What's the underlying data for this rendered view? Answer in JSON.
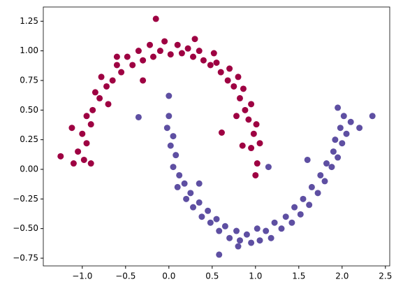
{
  "chart_data": {
    "type": "scatter",
    "xlim": [
      -1.45,
      2.55
    ],
    "ylim": [
      -0.815,
      1.37
    ],
    "xticks": [
      {
        "value": -1.0,
        "label": "−1.0"
      },
      {
        "value": -0.5,
        "label": "−0.5"
      },
      {
        "value": 0.0,
        "label": "0.0"
      },
      {
        "value": 0.5,
        "label": "0.5"
      },
      {
        "value": 1.0,
        "label": "1.0"
      },
      {
        "value": 1.5,
        "label": "1.5"
      },
      {
        "value": 2.0,
        "label": "2.0"
      },
      {
        "value": 2.5,
        "label": "2.5"
      }
    ],
    "yticks": [
      1.25,
      {
        "value": 1.0,
        "label": "1.00"
      },
      0.75,
      {
        "value": 0.5,
        "label": "0.50"
      },
      0.25,
      {
        "value": 0.0,
        "label": "0.00"
      },
      {
        "value": -0.25,
        "label": "−0.25"
      },
      {
        "value": -0.5,
        "label": "−0.50"
      },
      {
        "value": -0.75,
        "label": "−0.75"
      }
    ],
    "grid": false,
    "series": [
      {
        "color": "#9e0142",
        "x": [
          1.02,
          0.95,
          1.05,
          0.98,
          0.92,
          1.01,
          0.88,
          0.95,
          0.82,
          0.86,
          0.75,
          0.8,
          0.68,
          0.7,
          0.6,
          0.55,
          0.48,
          0.52,
          0.4,
          0.35,
          0.28,
          0.22,
          0.15,
          0.1,
          0.02,
          -0.05,
          -0.1,
          -0.18,
          -0.22,
          -0.3,
          -0.35,
          -0.42,
          -0.48,
          -0.55,
          -0.6,
          -0.65,
          -0.72,
          -0.78,
          -0.8,
          -0.85,
          -0.88,
          -0.95,
          -0.9,
          -1.0,
          -0.95,
          -1.05,
          -0.98,
          -1.1,
          -1.25,
          -0.15,
          0.61,
          1.0,
          -0.9,
          -0.7,
          0.85,
          -0.3,
          0.3,
          -0.6,
          0.78,
          -1.12
        ],
        "y": [
          0.05,
          0.18,
          0.22,
          0.3,
          0.42,
          0.38,
          0.5,
          0.55,
          0.6,
          0.68,
          0.7,
          0.78,
          0.75,
          0.85,
          0.82,
          0.9,
          0.88,
          0.98,
          0.92,
          1.0,
          0.95,
          1.02,
          0.98,
          1.05,
          0.97,
          1.08,
          1.0,
          0.95,
          1.05,
          0.92,
          1.0,
          0.88,
          0.95,
          0.82,
          0.88,
          0.75,
          0.7,
          0.78,
          0.6,
          0.65,
          0.5,
          0.45,
          0.38,
          0.3,
          0.22,
          0.15,
          0.08,
          0.05,
          0.11,
          1.27,
          0.31,
          -0.05,
          0.05,
          0.55,
          0.2,
          0.75,
          1.1,
          0.95,
          0.45,
          0.35
        ]
      },
      {
        "color": "#5e4fa2",
        "x": [
          0.0,
          -0.02,
          0.05,
          0.02,
          0.08,
          0.05,
          0.12,
          0.1,
          0.18,
          0.2,
          0.25,
          0.28,
          0.35,
          0.38,
          0.45,
          0.48,
          0.55,
          0.58,
          0.65,
          0.7,
          0.78,
          0.82,
          0.9,
          0.95,
          1.02,
          1.05,
          1.12,
          1.18,
          1.22,
          1.3,
          1.35,
          1.42,
          1.45,
          1.52,
          1.55,
          1.62,
          1.65,
          1.72,
          1.75,
          1.8,
          1.82,
          1.88,
          1.9,
          1.95,
          1.92,
          2.0,
          1.98,
          2.05,
          2.02,
          1.95,
          2.1,
          2.35,
          0.0,
          -0.35,
          0.58,
          0.8,
          1.15,
          0.35,
          1.6,
          2.2
        ],
        "y": [
          0.45,
          0.35,
          0.28,
          0.2,
          0.12,
          0.02,
          -0.05,
          -0.15,
          -0.12,
          -0.25,
          -0.2,
          -0.32,
          -0.28,
          -0.4,
          -0.35,
          -0.45,
          -0.42,
          -0.52,
          -0.48,
          -0.58,
          -0.52,
          -0.6,
          -0.55,
          -0.62,
          -0.5,
          -0.6,
          -0.52,
          -0.58,
          -0.45,
          -0.5,
          -0.4,
          -0.45,
          -0.32,
          -0.38,
          -0.25,
          -0.3,
          -0.15,
          -0.2,
          -0.05,
          -0.1,
          0.05,
          0.02,
          0.15,
          0.1,
          0.25,
          0.22,
          0.35,
          0.3,
          0.45,
          0.52,
          0.4,
          0.45,
          0.62,
          0.44,
          -0.72,
          -0.65,
          0.02,
          -0.12,
          0.08,
          0.35
        ]
      }
    ]
  }
}
